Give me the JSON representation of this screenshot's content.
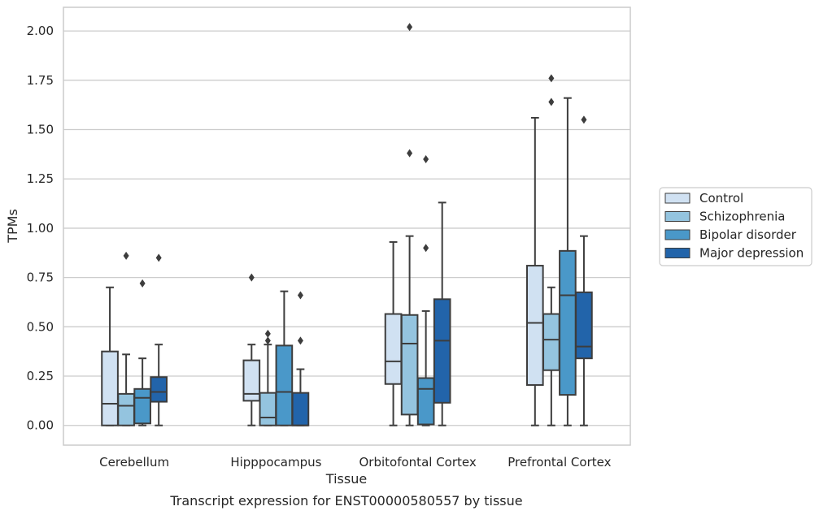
{
  "chart_data": {
    "type": "boxplot",
    "title": "",
    "caption": "Transcript expression for ENST00000580557 by tissue",
    "xlabel": "Tissue",
    "ylabel": "TPMs",
    "ylim": [
      -0.1,
      2.12
    ],
    "yticks": [
      "0.00",
      "0.25",
      "0.50",
      "0.75",
      "1.00",
      "1.25",
      "1.50",
      "1.75",
      "2.00"
    ],
    "grid": "horizontal",
    "legend_position": "right-center",
    "categories": [
      "Cerebellum",
      "Hipppocampus",
      "Orbitofontal Cortex",
      "Prefrontal Cortex"
    ],
    "series": [
      {
        "name": "Control",
        "color": "#d0e1f2",
        "boxes": [
          {
            "whisker_low": 0.0,
            "q1": 0.0,
            "median": 0.11,
            "q3": 0.375,
            "whisker_high": 0.7,
            "outliers": []
          },
          {
            "whisker_low": 0.0,
            "q1": 0.125,
            "median": 0.16,
            "q3": 0.33,
            "whisker_high": 0.41,
            "outliers": [
              0.75
            ]
          },
          {
            "whisker_low": 0.0,
            "q1": 0.21,
            "median": 0.325,
            "q3": 0.565,
            "whisker_high": 0.93,
            "outliers": []
          },
          {
            "whisker_low": 0.0,
            "q1": 0.205,
            "median": 0.52,
            "q3": 0.81,
            "whisker_high": 1.56,
            "outliers": []
          }
        ]
      },
      {
        "name": "Schizophrenia",
        "color": "#94c4df",
        "boxes": [
          {
            "whisker_low": 0.0,
            "q1": 0.0,
            "median": 0.1,
            "q3": 0.16,
            "whisker_high": 0.36,
            "outliers": [
              0.86
            ]
          },
          {
            "whisker_low": 0.0,
            "q1": 0.0,
            "median": 0.04,
            "q3": 0.165,
            "whisker_high": 0.41,
            "outliers": [
              0.43,
              0.465
            ]
          },
          {
            "whisker_low": 0.0,
            "q1": 0.055,
            "median": 0.415,
            "q3": 0.56,
            "whisker_high": 0.96,
            "outliers": [
              1.38,
              2.02
            ]
          },
          {
            "whisker_low": 0.0,
            "q1": 0.28,
            "median": 0.435,
            "q3": 0.565,
            "whisker_high": 0.7,
            "outliers": [
              1.64,
              1.76
            ]
          }
        ]
      },
      {
        "name": "Bipolar disorder",
        "color": "#4a98c9",
        "boxes": [
          {
            "whisker_low": 0.0,
            "q1": 0.01,
            "median": 0.14,
            "q3": 0.185,
            "whisker_high": 0.34,
            "outliers": [
              0.72
            ]
          },
          {
            "whisker_low": 0.0,
            "q1": 0.0,
            "median": 0.17,
            "q3": 0.405,
            "whisker_high": 0.68,
            "outliers": []
          },
          {
            "whisker_low": 0.0,
            "q1": 0.005,
            "median": 0.185,
            "q3": 0.24,
            "whisker_high": 0.58,
            "outliers": [
              0.9,
              1.35
            ]
          },
          {
            "whisker_low": 0.0,
            "q1": 0.155,
            "median": 0.66,
            "q3": 0.885,
            "whisker_high": 1.66,
            "outliers": []
          }
        ]
      },
      {
        "name": "Major depression",
        "color": "#2264aa",
        "boxes": [
          {
            "whisker_low": 0.0,
            "q1": 0.12,
            "median": 0.17,
            "q3": 0.245,
            "whisker_high": 0.41,
            "outliers": [
              0.85
            ]
          },
          {
            "whisker_low": 0.0,
            "q1": 0.0,
            "median": 0.0,
            "q3": 0.165,
            "whisker_high": 0.285,
            "outliers": [
              0.43,
              0.66
            ]
          },
          {
            "whisker_low": 0.0,
            "q1": 0.115,
            "median": 0.43,
            "q3": 0.64,
            "whisker_high": 1.13,
            "outliers": []
          },
          {
            "whisker_low": 0.0,
            "q1": 0.34,
            "median": 0.4,
            "q3": 0.675,
            "whisker_high": 0.96,
            "outliers": [
              1.55
            ]
          }
        ]
      }
    ]
  }
}
